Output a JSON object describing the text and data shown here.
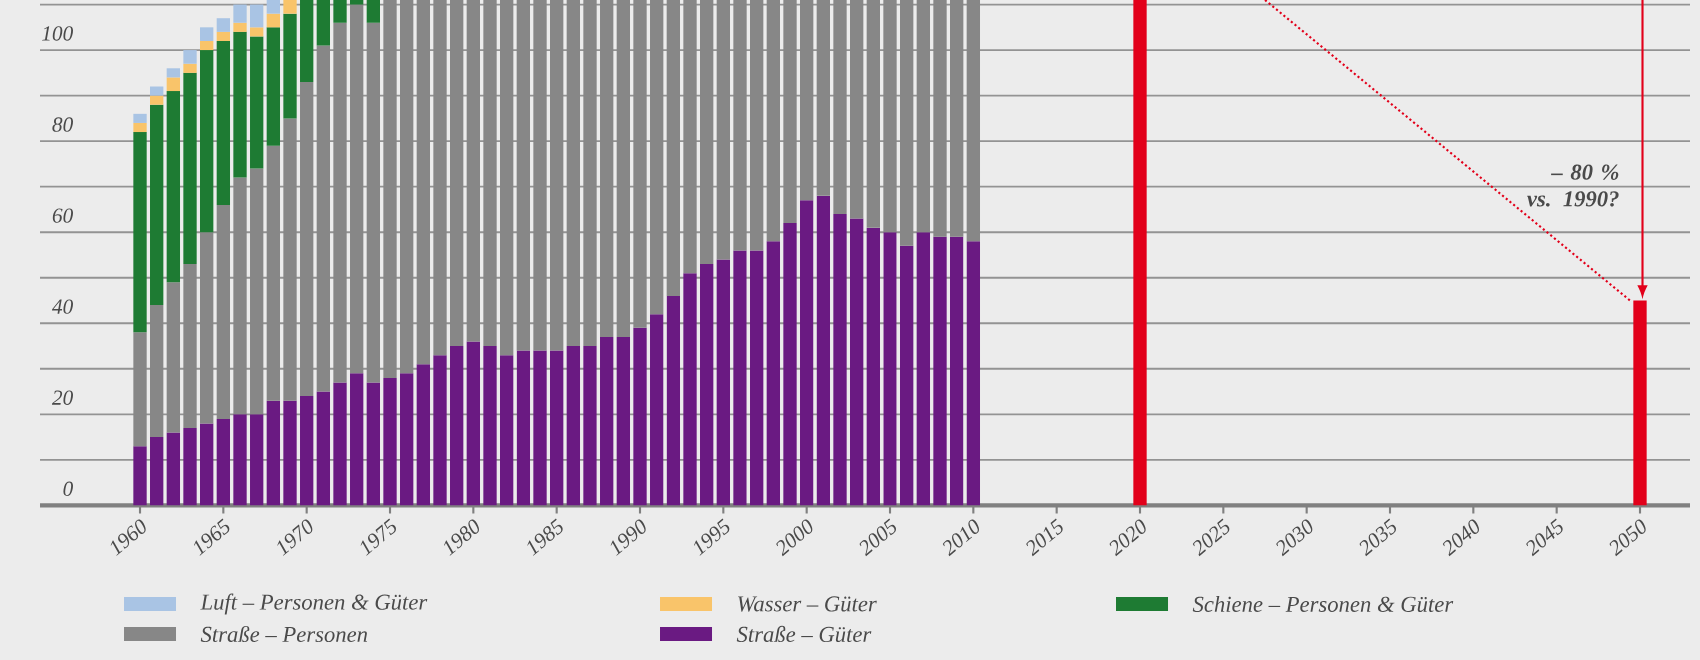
{
  "chart_data": {
    "type": "bar",
    "stacked": true,
    "x": [
      1960,
      1961,
      1962,
      1963,
      1964,
      1965,
      1966,
      1967,
      1968,
      1969,
      1970,
      1971,
      1972,
      1973,
      1974,
      1975,
      1976,
      1977,
      1978,
      1979,
      1980,
      1981,
      1982,
      1983,
      1984,
      1985,
      1986,
      1987,
      1988,
      1989,
      1990,
      1991,
      1992,
      1993,
      1994,
      1995,
      1996,
      1997,
      1998,
      1999,
      2000,
      2001,
      2002,
      2003,
      2004,
      2005,
      2006,
      2007,
      2008,
      2009,
      2010,
      2020,
      2050
    ],
    "xlim": [
      1954,
      2053
    ],
    "xticks": [
      1960,
      1965,
      1970,
      1975,
      1980,
      1985,
      1990,
      1995,
      2000,
      2005,
      2010,
      2015,
      2020,
      2025,
      2030,
      2035,
      2040,
      2045,
      2050
    ],
    "ylim": [
      0,
      111
    ],
    "yticks": [
      0,
      {
        "value": 10,
        "label": null
      },
      20,
      {
        "value": 30,
        "label": null
      },
      40,
      {
        "value": 50,
        "label": null
      },
      60,
      {
        "value": 70,
        "label": null
      },
      80,
      {
        "value": 90,
        "label": null
      },
      100,
      {
        "value": 110,
        "label": null
      }
    ],
    "grid": "y",
    "legend": "bottom",
    "series": [
      {
        "name": "Straße – Güter",
        "color": "#6a1a82",
        "values": [
          13,
          15,
          16,
          17,
          18,
          19,
          20,
          20,
          23,
          23,
          24,
          25,
          27,
          29,
          27,
          28,
          29,
          31,
          33,
          35,
          36,
          35,
          33,
          34,
          34,
          34,
          35,
          35,
          37,
          37,
          39,
          42,
          46,
          51,
          53,
          54,
          56,
          56,
          58,
          62,
          67,
          68,
          64,
          63,
          61,
          60,
          57,
          60,
          59,
          59,
          58,
          null,
          null
        ]
      },
      {
        "name": "Straße – Personen",
        "color": "#878787",
        "values": [
          25,
          29,
          33,
          36,
          42,
          47,
          52,
          54,
          56,
          62,
          69,
          76,
          79,
          81,
          79,
          83,
          82,
          80,
          78,
          76,
          75,
          76,
          78,
          77,
          77,
          77,
          76,
          76,
          74,
          74,
          72,
          69,
          65,
          60,
          58,
          57,
          55,
          55,
          53,
          49,
          44,
          43,
          47,
          48,
          50,
          51,
          54,
          51,
          52,
          52,
          53,
          null,
          null
        ]
      },
      {
        "name": "Schiene – Personen & Güter",
        "color": "#1e7b33",
        "values": [
          44,
          44,
          42,
          42,
          40,
          36,
          32,
          29,
          26,
          23,
          18,
          10,
          5,
          1,
          5,
          null,
          null,
          null,
          null,
          null,
          null,
          null,
          null,
          null,
          null,
          null,
          null,
          null,
          null,
          null,
          null,
          null,
          null,
          null,
          null,
          null,
          null,
          null,
          null,
          null,
          null,
          null,
          null,
          null,
          null,
          null,
          null,
          null,
          null,
          null,
          null,
          null,
          null
        ]
      },
      {
        "name": "Wasser – Güter",
        "color": "#f9c46a",
        "values": [
          2,
          2,
          3,
          2,
          2,
          2,
          2,
          2,
          3,
          3,
          null,
          null,
          null,
          null,
          null,
          null,
          null,
          null,
          null,
          null,
          null,
          null,
          null,
          null,
          null,
          null,
          null,
          null,
          null,
          null,
          null,
          null,
          null,
          null,
          null,
          null,
          null,
          null,
          null,
          null,
          null,
          null,
          null,
          null,
          null,
          null,
          null,
          null,
          null,
          null,
          null,
          null,
          null
        ]
      },
      {
        "name": "Luft – Personen & Güter",
        "color": "#a9c4e4",
        "values": [
          2,
          2,
          2,
          3,
          3,
          3,
          4,
          5,
          3,
          null,
          null,
          null,
          null,
          null,
          null,
          null,
          null,
          null,
          null,
          null,
          null,
          null,
          null,
          null,
          null,
          null,
          null,
          null,
          null,
          null,
          null,
          null,
          null,
          null,
          null,
          null,
          null,
          null,
          null,
          null,
          null,
          null,
          null,
          null,
          null,
          null,
          null,
          null,
          null,
          null,
          null,
          null,
          null
        ]
      },
      {
        "color": "#e2001a",
        "values": [
          null,
          null,
          null,
          null,
          null,
          null,
          null,
          null,
          null,
          null,
          null,
          null,
          null,
          null,
          null,
          null,
          null,
          null,
          null,
          null,
          null,
          null,
          null,
          null,
          null,
          null,
          null,
          null,
          null,
          null,
          null,
          null,
          null,
          null,
          null,
          null,
          null,
          null,
          null,
          null,
          null,
          null,
          null,
          null,
          null,
          null,
          null,
          null,
          null,
          null,
          null,
          111,
          45
        ]
      },
      {
        "type": "line",
        "color": "#e2001a",
        "line_style": "dotted",
        "x": [
          2027.5,
          2049.4
        ],
        "values": [
          111,
          45
        ]
      }
    ],
    "annotations": [
      "– 80 % vs. 1990?"
    ]
  }
}
